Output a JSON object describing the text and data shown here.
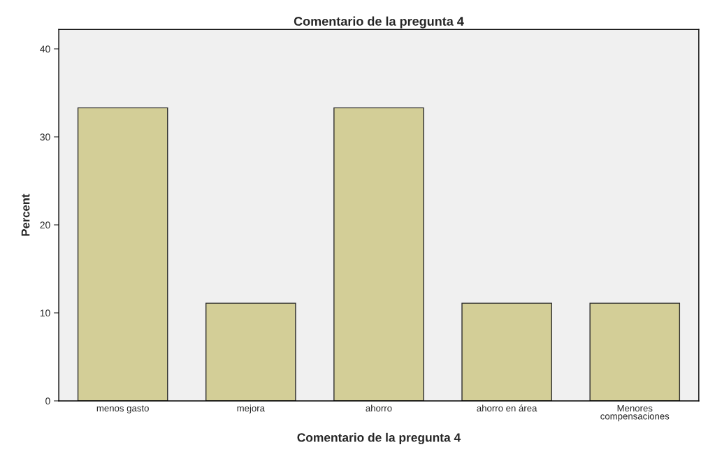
{
  "chart_data": {
    "type": "bar",
    "title": "Comentario de la pregunta 4",
    "xlabel": "Comentario de la pregunta 4",
    "ylabel": "Percent",
    "categories": [
      "menos gasto",
      "mejora",
      "ahorro",
      "ahorro en área",
      "Menores\ncompensaciones"
    ],
    "values": [
      33.3,
      11.1,
      33.3,
      11.1,
      11.1
    ],
    "color": "#d3ce97",
    "ylim": [
      0,
      42.2
    ],
    "yticks": [
      0,
      10,
      20,
      30,
      40
    ],
    "grid": false,
    "legend": false
  }
}
